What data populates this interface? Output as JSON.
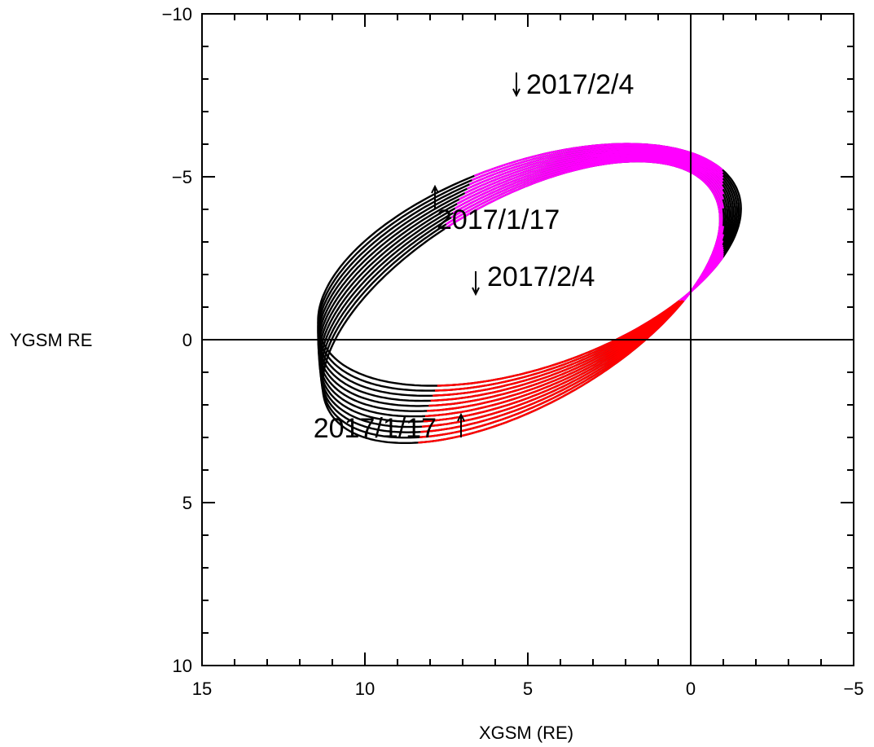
{
  "chart_data": {
    "type": "line",
    "title": "",
    "xlabel": "XGSM (RE)",
    "ylabel": "YGSM RE",
    "xlim": [
      15,
      -5
    ],
    "ylim": [
      10,
      -10
    ],
    "x_ticks": [
      15,
      10,
      5,
      0,
      -5
    ],
    "x_tick_labels": [
      "15",
      "10",
      "5",
      "0",
      "−5"
    ],
    "y_ticks": [
      -10,
      -5,
      0,
      5,
      10
    ],
    "y_tick_labels": [
      "−10",
      "−5",
      "0",
      "5",
      "10"
    ],
    "x_minor_step": 1,
    "y_minor_step": 1,
    "zero_lines": true,
    "grid": false,
    "legend": "none",
    "orbit_count": 12,
    "orbit_ellipse": {
      "center_x": 5.1,
      "center_y": -1.73,
      "semi_major": 6.78,
      "semi_minor": 3.15,
      "base_rotation_deg": 24.3,
      "rotation_step_deg": 0.95,
      "periapsis_x": -1.2,
      "periapsis_y": -0.35
    },
    "colors": {
      "orbit": "#000000",
      "dusk_segment": "#ff00ff",
      "dawn_segment": "#ff0000",
      "axes": "#000000"
    },
    "annotations": [
      {
        "text": "2017/2/4",
        "x": 5.35,
        "y": -7.5,
        "arrow": "down"
      },
      {
        "text": "2017/1/17",
        "x": 7.85,
        "y": -4.7,
        "arrow": "up"
      },
      {
        "text": "2017/2/4",
        "x": 6.6,
        "y": -1.4,
        "arrow": "down"
      },
      {
        "text": "2017/1/17",
        "x": 7.05,
        "y": 2.3,
        "arrow": "up"
      }
    ]
  }
}
